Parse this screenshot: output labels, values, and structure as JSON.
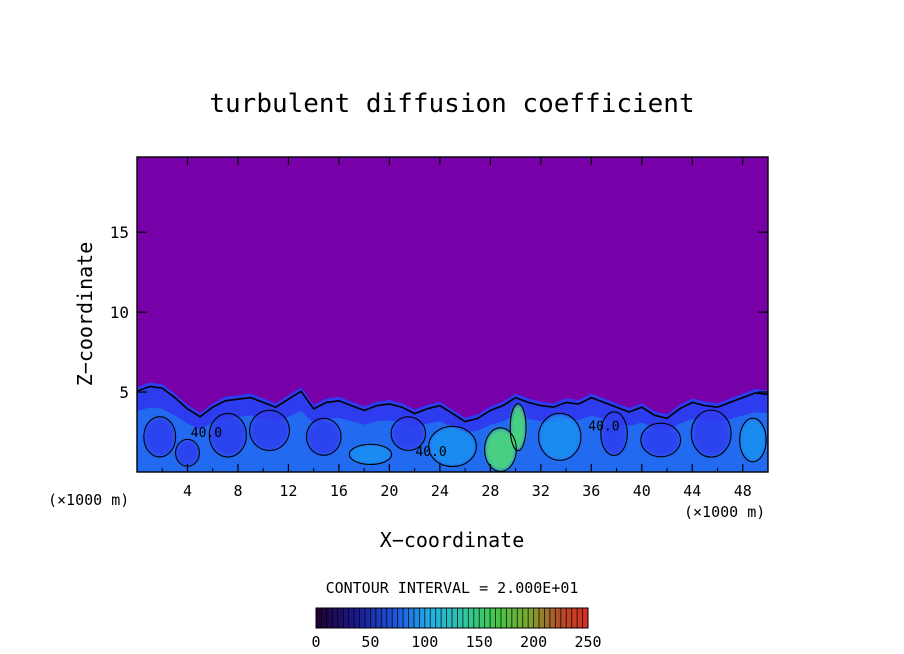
{
  "chart_data": {
    "type": "heatmap",
    "title": "turbulent diffusion coefficient",
    "xlabel": "X−coordinate",
    "ylabel": "Z−coordinate",
    "xunit_left": "(×1000 m)",
    "xunit_right": "(×1000 m)",
    "x_ticks": [
      4,
      8,
      12,
      16,
      20,
      24,
      28,
      32,
      36,
      40,
      44,
      48
    ],
    "y_ticks": [
      5,
      10,
      15
    ],
    "xlim": [
      0,
      50
    ],
    "ylim": [
      0,
      19.7
    ],
    "contour_interval_text": "CONTOUR INTERVAL = 2.000E+01",
    "contour_labels": [
      {
        "text": "40.0",
        "x": 5.5,
        "z": 2.2
      },
      {
        "text": "40.0",
        "x": 23.3,
        "z": 1.0
      },
      {
        "text": "40.0",
        "x": 37.0,
        "z": 2.6
      }
    ],
    "colorbar": {
      "min": 0,
      "max": 250,
      "tick_values": [
        0,
        50,
        100,
        150,
        200,
        250
      ],
      "tick_labels": [
        "0",
        "50",
        "100",
        "150",
        "200",
        "250"
      ]
    },
    "colors": {
      "background_field": "#7800a8",
      "low_field": "#2e3cf0",
      "mid_field": "#1a90f0",
      "high_field": "#30d0c0",
      "peak_field": "#50e070"
    },
    "boundary_layer_top": [
      [
        0,
        5.3
      ],
      [
        1,
        5.6
      ],
      [
        2,
        5.5
      ],
      [
        3,
        4.9
      ],
      [
        4,
        4.2
      ],
      [
        5,
        3.7
      ],
      [
        6,
        4.3
      ],
      [
        7,
        4.7
      ],
      [
        8,
        4.8
      ],
      [
        9,
        4.9
      ],
      [
        10,
        4.6
      ],
      [
        11,
        4.3
      ],
      [
        12,
        4.8
      ],
      [
        13,
        5.3
      ],
      [
        14,
        4.2
      ],
      [
        15,
        4.6
      ],
      [
        16,
        4.7
      ],
      [
        17,
        4.4
      ],
      [
        18,
        4.1
      ],
      [
        19,
        4.4
      ],
      [
        20,
        4.5
      ],
      [
        21,
        4.3
      ],
      [
        22,
        3.9
      ],
      [
        23,
        4.2
      ],
      [
        24,
        4.4
      ],
      [
        25,
        3.9
      ],
      [
        26,
        3.4
      ],
      [
        27,
        3.6
      ],
      [
        28,
        4.1
      ],
      [
        29,
        4.4
      ],
      [
        30,
        4.9
      ],
      [
        31,
        4.6
      ],
      [
        32,
        4.4
      ],
      [
        33,
        4.3
      ],
      [
        34,
        4.6
      ],
      [
        35,
        4.5
      ],
      [
        36,
        4.9
      ],
      [
        37,
        4.6
      ],
      [
        38,
        4.3
      ],
      [
        39,
        4.0
      ],
      [
        40,
        4.3
      ],
      [
        41,
        3.8
      ],
      [
        42,
        3.6
      ],
      [
        43,
        4.2
      ],
      [
        44,
        4.6
      ],
      [
        45,
        4.4
      ],
      [
        46,
        4.3
      ],
      [
        47,
        4.6
      ],
      [
        48,
        4.9
      ],
      [
        49,
        5.2
      ],
      [
        50,
        5.1
      ]
    ],
    "eddies": [
      {
        "x": 1.8,
        "z": 2.2,
        "rx": 1.2,
        "rz": 1.2,
        "value": 30
      },
      {
        "x": 4.0,
        "z": 1.2,
        "rx": 0.9,
        "rz": 0.8,
        "value": 20
      },
      {
        "x": 7.2,
        "z": 2.3,
        "rx": 1.4,
        "rz": 1.3,
        "value": 25
      },
      {
        "x": 10.5,
        "z": 2.6,
        "rx": 1.5,
        "rz": 1.2,
        "value": 22
      },
      {
        "x": 14.8,
        "z": 2.2,
        "rx": 1.3,
        "rz": 1.1,
        "value": 30
      },
      {
        "x": 18.5,
        "z": 1.1,
        "rx": 1.6,
        "rz": 0.6,
        "value": 75
      },
      {
        "x": 21.5,
        "z": 2.4,
        "rx": 1.3,
        "rz": 1.0,
        "value": 28
      },
      {
        "x": 25.0,
        "z": 1.6,
        "rx": 1.8,
        "rz": 1.2,
        "value": 60
      },
      {
        "x": 28.8,
        "z": 1.4,
        "rx": 1.2,
        "rz": 1.3,
        "value": 130
      },
      {
        "x": 30.2,
        "z": 2.8,
        "rx": 0.6,
        "rz": 1.4,
        "value": 150
      },
      {
        "x": 33.5,
        "z": 2.2,
        "rx": 1.6,
        "rz": 1.4,
        "value": 35
      },
      {
        "x": 37.8,
        "z": 2.4,
        "rx": 1.0,
        "rz": 1.3,
        "value": 22
      },
      {
        "x": 41.5,
        "z": 2.0,
        "rx": 1.5,
        "rz": 1.0,
        "value": 30
      },
      {
        "x": 45.5,
        "z": 2.4,
        "rx": 1.5,
        "rz": 1.4,
        "value": 25
      },
      {
        "x": 48.8,
        "z": 2.0,
        "rx": 1.0,
        "rz": 1.3,
        "value": 40
      }
    ]
  }
}
